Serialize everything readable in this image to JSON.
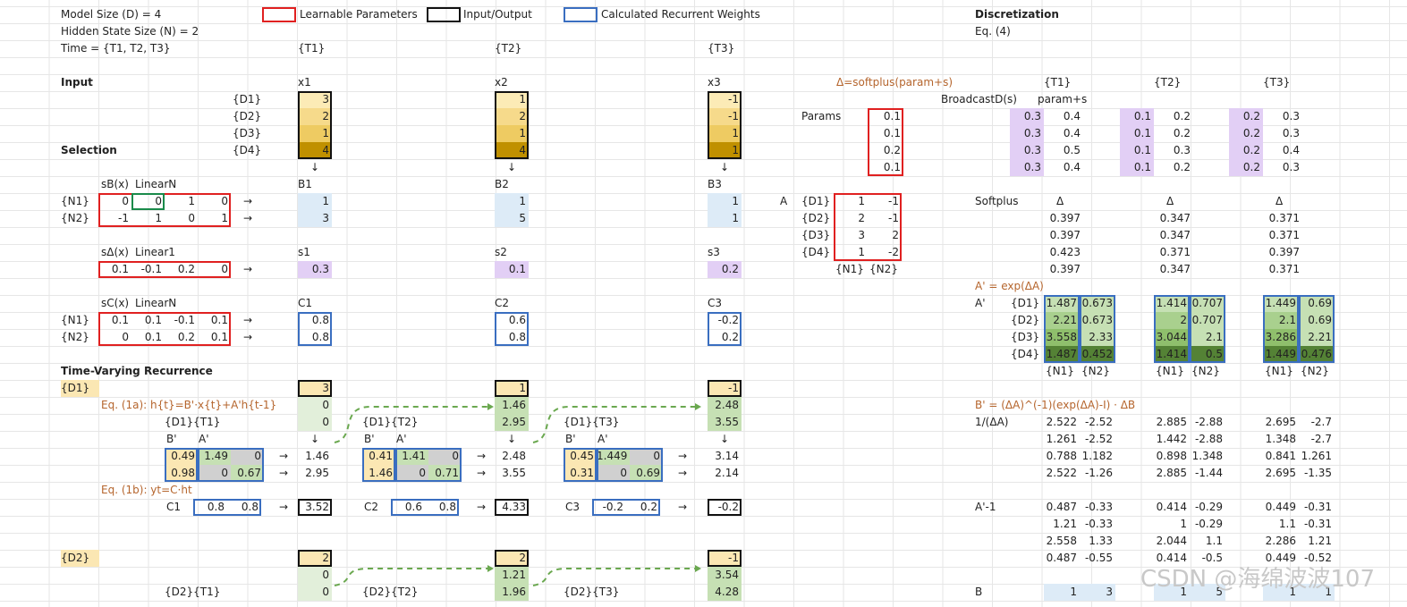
{
  "header": {
    "model_size": "Model Size (D) = 4",
    "hidden_state_size": "Hidden State Size (N) = 2",
    "time": "Time = {T1, T2, T3}"
  },
  "legend": {
    "learnable": "Learnable Parameters",
    "io": "Input/Output",
    "calculated": "Calculated Recurrent Weights"
  },
  "times": [
    "{T1}",
    "{T2}",
    "{T3}"
  ],
  "sections": {
    "input": "Input",
    "selection": "Selection",
    "tvr": "Time-Varying Recurrence"
  },
  "dims": [
    "{D1}",
    "{D2}",
    "{D3}",
    "{D4}"
  ],
  "hidden_dims": [
    "{N1}",
    "{N2}"
  ],
  "input": {
    "labels": [
      "x1",
      "x2",
      "x3"
    ],
    "values": [
      [
        "3",
        "2",
        "1",
        "4"
      ],
      [
        "1",
        "2",
        "1",
        "4"
      ],
      [
        "-1",
        "-1",
        "1",
        "1"
      ]
    ],
    "colors": [
      "#fcebb6",
      "#f6da8b",
      "#eecb62",
      "#c09000"
    ]
  },
  "sB": {
    "label": "sB(x)",
    "linear": "LinearN",
    "matrix": [
      [
        "0",
        "0",
        "1",
        "0"
      ],
      [
        "-1",
        "1",
        "0",
        "1"
      ]
    ],
    "out_labels": [
      "B1",
      "B2",
      "B3"
    ],
    "out": [
      [
        "1",
        "3"
      ],
      [
        "1",
        "5"
      ],
      [
        "1",
        "1"
      ]
    ]
  },
  "sD": {
    "label": "sΔ(x)",
    "linear": "Linear1",
    "matrix": [
      "0.1",
      "-0.1",
      "0.2",
      "0"
    ],
    "out_labels": [
      "s1",
      "s2",
      "s3"
    ],
    "out": [
      "0.3",
      "0.1",
      "0.2"
    ]
  },
  "sC": {
    "label": "sC(x)",
    "linear": "LinearN",
    "matrix": [
      [
        "0.1",
        "0.1",
        "-0.1",
        "0.1"
      ],
      [
        "0",
        "0.1",
        "0.2",
        "0.1"
      ]
    ],
    "out_labels": [
      "C1",
      "C2",
      "C3"
    ],
    "out": [
      [
        "0.8",
        "0.8"
      ],
      [
        "0.6",
        "0.8"
      ],
      [
        "-0.2",
        "0.2"
      ]
    ]
  },
  "tvr": {
    "eq1a": "Eq. (1a): h{t}=B'·x{t}+A'h{t-1}",
    "eq1b": "Eq. (1b): yt=C·ht",
    "d1": {
      "label": "{D1}",
      "x": [
        "3",
        "1",
        "-1"
      ],
      "h_prev": [
        [
          "0",
          "0"
        ],
        [
          "1.46",
          "2.95"
        ],
        [
          "2.48",
          "3.55"
        ]
      ],
      "tags": [
        "{D1}{T1}",
        "{D1}{T2}",
        "{D1}{T3}"
      ],
      "bp": [
        "0.49",
        "0.98",
        "0.41",
        "1.46",
        "0.45",
        "0.31"
      ],
      "ap": [
        [
          "1.49",
          "0",
          "0",
          "0.67"
        ],
        [
          "1.41",
          "0",
          "0",
          "0.71"
        ],
        [
          "1.449",
          "0",
          "0",
          "0.69"
        ]
      ],
      "h": [
        [
          "1.46",
          "2.95"
        ],
        [
          "2.48",
          "3.55"
        ],
        [
          "3.14",
          "2.14"
        ]
      ],
      "c": [
        "C1",
        "C2",
        "C3"
      ],
      "cv": [
        [
          "0.8",
          "0.8"
        ],
        [
          "0.6",
          "0.8"
        ],
        [
          "-0.2",
          "0.2"
        ]
      ],
      "y": [
        "3.52",
        "4.33",
        "-0.2"
      ]
    },
    "d2": {
      "label": "{D2}",
      "x": [
        "2",
        "2",
        "-1"
      ],
      "h_prev": [
        [
          "0",
          "0"
        ],
        [
          "1.21",
          "1.96"
        ],
        [
          "3.54",
          "4.28"
        ]
      ],
      "tags": [
        "{D2}{T1}",
        "{D2}{T2}",
        "{D2}{T3}"
      ]
    },
    "bp_label": "B'",
    "ap_label": "A'"
  },
  "disc": {
    "title": "Discretization",
    "eq4": "Eq. (4)",
    "delta_formula": "Δ=softplus(param+s)",
    "broadcast": "BroadcastD(s)",
    "param_s": "param+s",
    "params_label": "Params",
    "params": [
      "0.1",
      "0.1",
      "0.2",
      "0.1"
    ],
    "s_vals": [
      "0.3",
      "0.1",
      "0.2"
    ],
    "param_s_vals": [
      [
        "0.4",
        "0.4",
        "0.5",
        "0.4"
      ],
      [
        "0.2",
        "0.2",
        "0.3",
        "0.2"
      ],
      [
        "0.3",
        "0.3",
        "0.4",
        "0.3"
      ]
    ],
    "softplus": "Softplus",
    "delta_sym": "Δ",
    "delta": [
      [
        "0.397",
        "0.397",
        "0.423",
        "0.397"
      ],
      [
        "0.347",
        "0.347",
        "0.371",
        "0.347"
      ],
      [
        "0.371",
        "0.371",
        "0.397",
        "0.371"
      ]
    ],
    "A_label": "A",
    "A": [
      [
        "1",
        "-1"
      ],
      [
        "2",
        "-1"
      ],
      [
        "3",
        "2"
      ],
      [
        "1",
        "-2"
      ]
    ],
    "ap_formula": "A' = exp(ΔA)",
    "ap_label": "A'",
    "ap": [
      [
        [
          "1.487",
          "0.673"
        ],
        [
          "2.21",
          "0.673"
        ],
        [
          "3.558",
          "2.33"
        ],
        [
          "1.487",
          "0.452"
        ]
      ],
      [
        [
          "1.414",
          "0.707"
        ],
        [
          "2",
          "0.707"
        ],
        [
          "3.044",
          "2.1"
        ],
        [
          "1.414",
          "0.5"
        ]
      ],
      [
        [
          "1.449",
          "0.69"
        ],
        [
          "2.1",
          "0.69"
        ],
        [
          "3.286",
          "2.21"
        ],
        [
          "1.449",
          "0.476"
        ]
      ]
    ],
    "ap_colors": [
      "#c6e0b4",
      "#a9d08e",
      "#8fbf6c",
      "#548235"
    ],
    "bp_formula": "B' = (ΔA)^(-1)(exp(ΔA)-I) · ΔB",
    "inv_label": "1/(ΔA)",
    "inv": [
      [
        [
          "2.522",
          "-2.52"
        ],
        [
          "1.261",
          "-2.52"
        ],
        [
          "0.788",
          "1.182"
        ],
        [
          "2.522",
          "-1.26"
        ]
      ],
      [
        [
          "2.885",
          "-2.88"
        ],
        [
          "1.442",
          "-2.88"
        ],
        [
          "0.898",
          "1.348"
        ],
        [
          "2.885",
          "-1.44"
        ]
      ],
      [
        [
          "2.695",
          "-2.7"
        ],
        [
          "1.348",
          "-2.7"
        ],
        [
          "0.841",
          "1.261"
        ],
        [
          "2.695",
          "-1.35"
        ]
      ]
    ],
    "am1_label": "A'-1",
    "am1": [
      [
        [
          "0.487",
          "-0.33"
        ],
        [
          "1.21",
          "-0.33"
        ],
        [
          "2.558",
          "1.33"
        ],
        [
          "0.487",
          "-0.55"
        ]
      ],
      [
        [
          "0.414",
          "-0.29"
        ],
        [
          "1",
          "-0.29"
        ],
        [
          "2.044",
          "1.1"
        ],
        [
          "0.414",
          "-0.5"
        ]
      ],
      [
        [
          "0.449",
          "-0.31"
        ],
        [
          "1.1",
          "-0.31"
        ],
        [
          "2.286",
          "1.21"
        ],
        [
          "0.449",
          "-0.52"
        ]
      ]
    ],
    "b_label": "B",
    "b": [
      [
        "1",
        "3"
      ],
      [
        "1",
        "5"
      ],
      [
        "1",
        "1"
      ]
    ]
  },
  "watermark": "CSDN @海绵波波107",
  "colors": {
    "red": "#e02020",
    "blue": "#3a6ec0",
    "lightblue": "#ddebf7",
    "purple": "#e2cff5",
    "green_light": "#e2efda",
    "green": "#c6e0b4",
    "orange": "#b5652d"
  }
}
